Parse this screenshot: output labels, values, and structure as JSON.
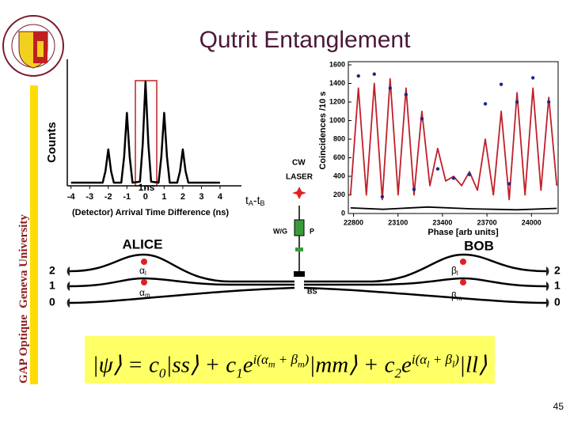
{
  "slide": {
    "title": "Qutrit Entanglement",
    "sidebar": [
      "GAP Optique",
      "Geneva University"
    ],
    "page_number": "45",
    "equation": [
      "|ψ⟩ = c",
      "0",
      "|ss⟩ + c",
      "1",
      "e",
      "i(α",
      "m",
      " + β",
      "m",
      ")",
      "|mm⟩ + c",
      "2",
      "e",
      "i(α",
      "l",
      " + β",
      "l",
      ")",
      "|ll⟩"
    ]
  },
  "chart_data": [
    {
      "type": "line",
      "ylabel": "Counts",
      "xlabel": "(Detector) Arrival Time Difference (ns)",
      "annotation": "1ns",
      "axis_end_label": [
        "t",
        "A",
        "-t",
        "B"
      ],
      "xlim": [
        -4.2,
        5.15
      ],
      "ylim": [
        0,
        110
      ],
      "xticks": [
        -4,
        -3,
        -2,
        -1,
        0,
        1,
        2,
        3,
        4
      ],
      "x": [
        -4,
        -2.3,
        -2.15,
        -2,
        -1.85,
        -1.7,
        -1.3,
        -1.15,
        -1,
        -0.85,
        -0.7,
        -0.3,
        -0.15,
        0,
        0.15,
        0.3,
        0.7,
        0.85,
        1,
        1.15,
        1.3,
        1.7,
        1.85,
        2,
        2.15,
        2.3,
        4
      ],
      "series": [
        {
          "type": "line",
          "color": "#000000",
          "values": [
            3,
            3,
            14,
            35,
            14,
            3,
            3,
            28,
            70,
            28,
            3,
            4,
            40,
            100,
            40,
            4,
            3,
            28,
            70,
            28,
            3,
            3,
            14,
            35,
            14,
            3,
            3
          ]
        }
      ]
    },
    {
      "type": "line",
      "ylabel": "Coincidences /10 s",
      "xlabel": "Phase [arb units]",
      "xlim": [
        22765,
        24180
      ],
      "ylim": [
        0,
        1600
      ],
      "xticks": [
        22800,
        23100,
        23400,
        23700,
        24000
      ],
      "yticks": [
        0,
        200,
        400,
        600,
        800,
        1000,
        1200,
        1400,
        1600
      ],
      "series": [
        {
          "type": "line",
          "color": "#000000",
          "x": [
            22780,
            23000,
            23300,
            23600,
            23900,
            24171
          ],
          "values": [
            60,
            45,
            70,
            50,
            40,
            55
          ]
        },
        {
          "type": "line",
          "color": "#c0202a",
          "x": [
            22780,
            22833,
            22887,
            22940,
            22994,
            23047,
            23101,
            23154,
            23208,
            23261,
            23315,
            23368,
            23422,
            23475,
            23529,
            23582,
            23636,
            23689,
            23743,
            23796,
            23850,
            23903,
            23957,
            24010,
            24064,
            24117,
            24171
          ],
          "values": [
            200,
            1350,
            200,
            1400,
            150,
            1450,
            200,
            1350,
            200,
            1100,
            300,
            700,
            350,
            400,
            300,
            450,
            250,
            800,
            200,
            1100,
            150,
            1300,
            200,
            1350,
            250,
            1250,
            300
          ]
        },
        {
          "type": "scatter",
          "color": "#1a2a8a",
          "x": [
            22833,
            22940,
            22994,
            23047,
            23154,
            23208,
            23261,
            23368,
            23475,
            23582,
            23689,
            23796,
            23850,
            23903,
            24010,
            24117
          ],
          "values": [
            1480,
            1500,
            180,
            1350,
            1280,
            260,
            1020,
            480,
            380,
            420,
            1180,
            1390,
            320,
            1200,
            1460,
            1200
          ]
        }
      ]
    }
  ],
  "diagram": {
    "laser": [
      "CW",
      "LASER"
    ],
    "wg": "W/G",
    "p": "P",
    "bs": "BS",
    "alice": "ALICE",
    "bob": "BOB",
    "left_ports": [
      "2",
      "1",
      "0"
    ],
    "right_ports": [
      "2",
      "1",
      "0"
    ],
    "alice_phases": [
      [
        "α",
        "l"
      ],
      [
        "α",
        "m"
      ]
    ],
    "bob_phases": [
      [
        "β",
        "l"
      ],
      [
        "β",
        "m"
      ]
    ]
  }
}
